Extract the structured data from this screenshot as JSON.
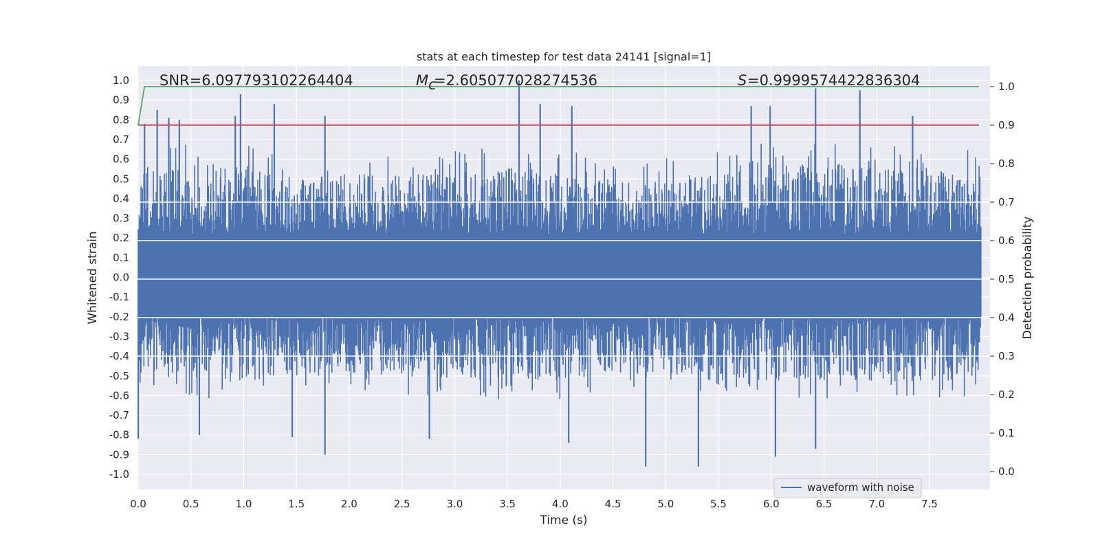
{
  "chart_data": {
    "type": "line",
    "title": "stats at each timestep for test data 24141 [signal=1]",
    "xlabel": "Time (s)",
    "ylabel": "Whitened strain",
    "y2label": "Detection probability",
    "xlim": [
      0.0,
      8.0
    ],
    "ylim": [
      -1.09,
      1.09
    ],
    "y2lim": [
      -0.045,
      1.045
    ],
    "x_ticks": [
      "0.0",
      "0.5",
      "1.0",
      "1.5",
      "2.0",
      "2.5",
      "3.0",
      "3.5",
      "4.0",
      "4.5",
      "5.0",
      "5.5",
      "6.0",
      "6.5",
      "7.0",
      "7.5"
    ],
    "y_ticks": [
      "1.0",
      "0.9",
      "0.8",
      "0.7",
      "0.6",
      "0.5",
      "0.4",
      "0.3",
      "0.2",
      "0.1",
      "0.0",
      "-0.1",
      "-0.2",
      "-0.3",
      "-0.4",
      "-0.5",
      "-0.6",
      "-0.7",
      "-0.8",
      "-0.9",
      "-1.0"
    ],
    "y2_ticks": [
      "1.0",
      "0.9",
      "0.8",
      "0.7",
      "0.6",
      "0.5",
      "0.4",
      "0.3",
      "0.2",
      "0.1",
      "0.0"
    ],
    "annotations": {
      "snr": "SNR=6.097793102264404",
      "mc": "=2.605077028274536",
      "s": "=0.9999574422836304"
    },
    "legend_position": "lower right",
    "grid": true,
    "series": [
      {
        "name": "waveform with noise",
        "axis": "left",
        "color": "#4c72b0",
        "envelope": {
          "x": [
            0.0,
            0.5,
            1.0,
            1.5,
            2.0,
            2.5,
            3.0,
            3.5,
            4.0,
            4.5,
            5.0,
            5.5,
            6.0,
            6.5,
            7.0,
            7.5,
            7.99
          ],
          "upper": [
            0.55,
            0.6,
            0.6,
            0.52,
            0.55,
            0.55,
            0.55,
            0.58,
            0.55,
            0.5,
            0.52,
            0.55,
            0.6,
            0.6,
            0.58,
            0.58,
            0.55
          ],
          "lower": [
            -0.5,
            -0.55,
            -0.55,
            -0.52,
            -0.5,
            -0.52,
            -0.55,
            -0.55,
            -0.55,
            -0.5,
            -0.52,
            -0.52,
            -0.55,
            -0.55,
            -0.55,
            -0.55,
            -0.55
          ]
        },
        "spikes": [
          [
            0.06,
            0.78
          ],
          [
            0.18,
            0.85
          ],
          [
            0.29,
            0.81
          ],
          [
            0.39,
            0.8
          ],
          [
            0.92,
            0.82
          ],
          [
            0.97,
            0.93
          ],
          [
            1.29,
            0.88
          ],
          [
            1.77,
            0.82
          ],
          [
            3.61,
            1.0
          ],
          [
            3.81,
            0.88
          ],
          [
            4.11,
            0.87
          ],
          [
            5.81,
            0.87
          ],
          [
            5.99,
            0.87
          ],
          [
            6.42,
            0.96
          ],
          [
            6.84,
            0.95
          ],
          [
            7.34,
            0.82
          ],
          [
            0.0,
            -0.82
          ],
          [
            0.58,
            -0.8
          ],
          [
            1.46,
            -0.81
          ],
          [
            1.77,
            -0.9
          ],
          [
            2.76,
            -0.82
          ],
          [
            4.81,
            -0.96
          ],
          [
            5.31,
            -0.96
          ],
          [
            6.04,
            -0.91
          ],
          [
            6.42,
            -0.87
          ],
          [
            4.08,
            -0.84
          ]
        ]
      },
      {
        "name": "",
        "axis": "right",
        "color": "#55a868",
        "x": [
          0.0,
          0.06,
          7.97
        ],
        "y": [
          0.9,
          1.0,
          1.0
        ]
      },
      {
        "name": "",
        "axis": "right",
        "color": "#c44e52",
        "x": [
          0.0,
          7.97
        ],
        "y": [
          0.9,
          0.9
        ]
      }
    ]
  }
}
